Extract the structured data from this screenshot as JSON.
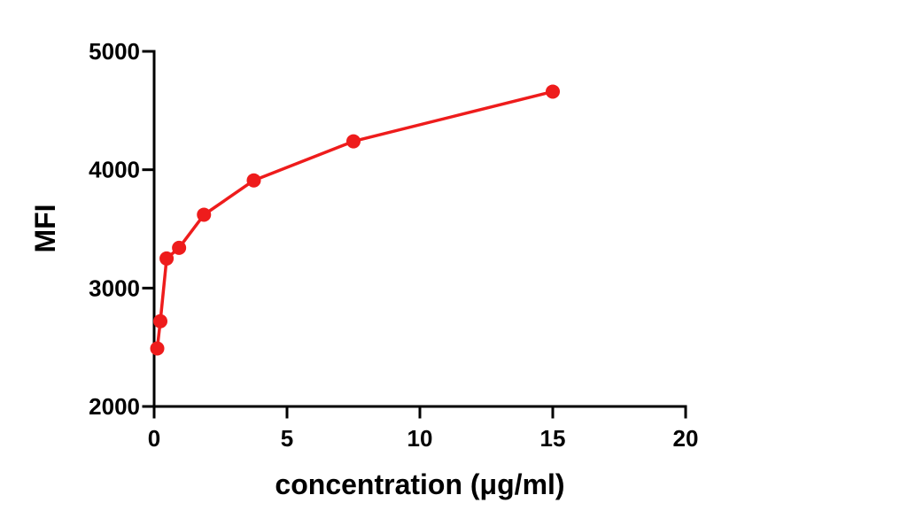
{
  "chart_data": {
    "type": "line",
    "title": "",
    "xlabel": "concentration (μg/ml)",
    "ylabel": "MFI",
    "xlim": [
      0,
      20
    ],
    "ylim": [
      2000,
      5000
    ],
    "x_ticks": [
      0,
      5,
      10,
      15,
      20
    ],
    "y_ticks": [
      2000,
      3000,
      4000,
      5000
    ],
    "grid": false,
    "legend": "none",
    "series": [
      {
        "color": "#ee1c1c",
        "marker": "circle",
        "x": [
          0.117,
          0.234,
          0.469,
          0.938,
          1.875,
          3.75,
          7.5,
          15
        ],
        "y": [
          2490,
          2720,
          3250,
          3340,
          3620,
          3910,
          4240,
          4660
        ]
      }
    ]
  }
}
